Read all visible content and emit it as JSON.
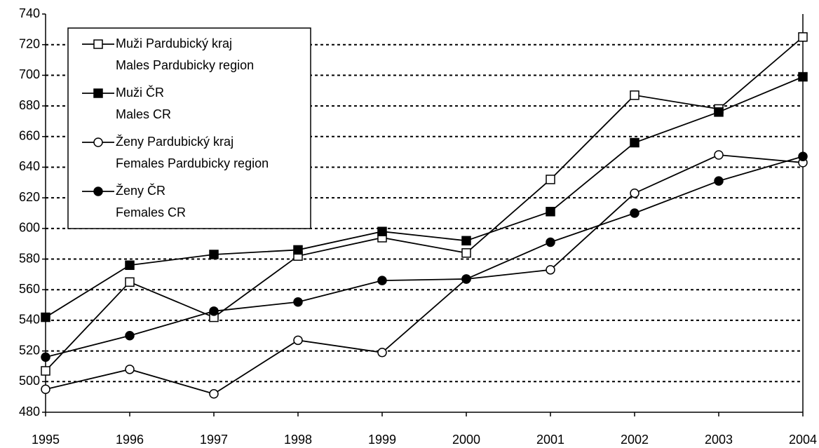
{
  "chart_data": {
    "type": "line",
    "x": [
      1995,
      1996,
      1997,
      1998,
      1999,
      2000,
      2001,
      2002,
      2003,
      2004
    ],
    "xlim": [
      1995,
      2004
    ],
    "xticks": [
      1995,
      1996,
      1997,
      1998,
      1999,
      2000,
      2001,
      2002,
      2003,
      2004
    ],
    "ylim": [
      480,
      740
    ],
    "yticks": [
      480,
      500,
      520,
      540,
      560,
      580,
      600,
      620,
      640,
      660,
      680,
      700,
      720,
      740
    ],
    "grid": true,
    "legend": "upper left",
    "series": [
      {
        "name": "Muži Pardubický kraj\nMales Pardubicky region",
        "color": "#000000",
        "marker": "square",
        "filled": false,
        "values": [
          507,
          565,
          542,
          582,
          594,
          584,
          632,
          687,
          678,
          725
        ]
      },
      {
        "name": "Muži ČR\nMales CR",
        "color": "#000000",
        "marker": "square",
        "filled": true,
        "values": [
          542,
          576,
          583,
          586,
          598,
          592,
          611,
          656,
          676,
          699
        ]
      },
      {
        "name": "Ženy Pardubický kraj\nFemales Pardubicky region",
        "color": "#000000",
        "marker": "circle",
        "filled": false,
        "values": [
          495,
          508,
          492,
          527,
          519,
          567,
          573,
          623,
          648,
          643
        ]
      },
      {
        "name": "Ženy ČR\nFemales CR",
        "color": "#000000",
        "marker": "circle",
        "filled": true,
        "values": [
          516,
          530,
          546,
          552,
          566,
          567,
          591,
          610,
          631,
          647
        ]
      }
    ]
  }
}
